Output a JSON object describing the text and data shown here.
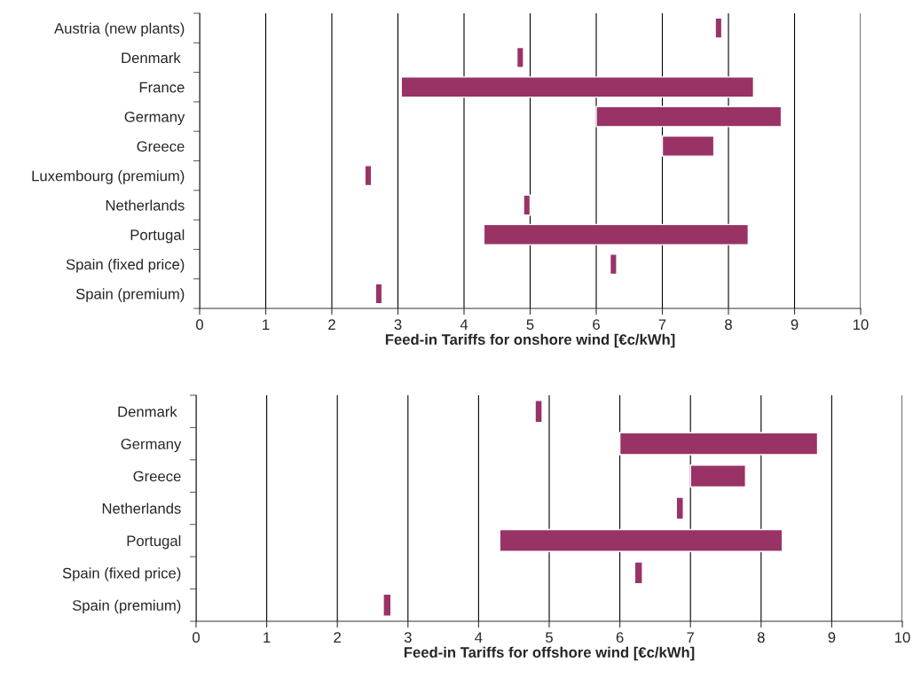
{
  "chart_data": [
    {
      "type": "bar",
      "orientation": "horizontal",
      "xlabel": "Feed-in Tariffs for onshore wind [€c/kWh]",
      "categories": [
        "Austria (new plants)",
        "Denmark ",
        "France",
        "Germany",
        "Greece",
        "Luxembourg (premium)",
        "Netherlands",
        "Portugal",
        "Spain (fixed price)",
        "Spain (premium)"
      ],
      "base": [
        7.8,
        4.8,
        3.05,
        6.0,
        7.0,
        2.5,
        4.9,
        4.3,
        6.21,
        2.66
      ],
      "values": [
        0.1,
        0.1,
        5.33,
        2.8,
        0.78,
        0.1,
        0.1,
        4.0,
        0.1,
        0.1
      ],
      "color": "#993366",
      "xlim": [
        0,
        10
      ],
      "xticks": [
        0,
        1,
        2,
        3,
        4,
        5,
        6,
        7,
        8,
        9,
        10
      ],
      "grid": "x",
      "legend": false
    },
    {
      "type": "bar",
      "orientation": "horizontal",
      "xlabel": "Feed-in Tariffs for offshore wind [€c/kWh]",
      "categories": [
        "Denmark ",
        "Germany",
        "Greece",
        "Netherlands",
        "Portugal",
        "Spain (fixed price)",
        "Spain (premium)"
      ],
      "base": [
        4.8,
        6.0,
        7.0,
        6.8,
        4.3,
        6.21,
        2.65
      ],
      "values": [
        0.1,
        2.8,
        0.78,
        0.1,
        4.0,
        0.11,
        0.11
      ],
      "color": "#993366",
      "xlim": [
        0,
        10
      ],
      "xticks": [
        0,
        1,
        2,
        3,
        4,
        5,
        6,
        7,
        8,
        9,
        10
      ],
      "grid": "x",
      "legend": false
    }
  ]
}
